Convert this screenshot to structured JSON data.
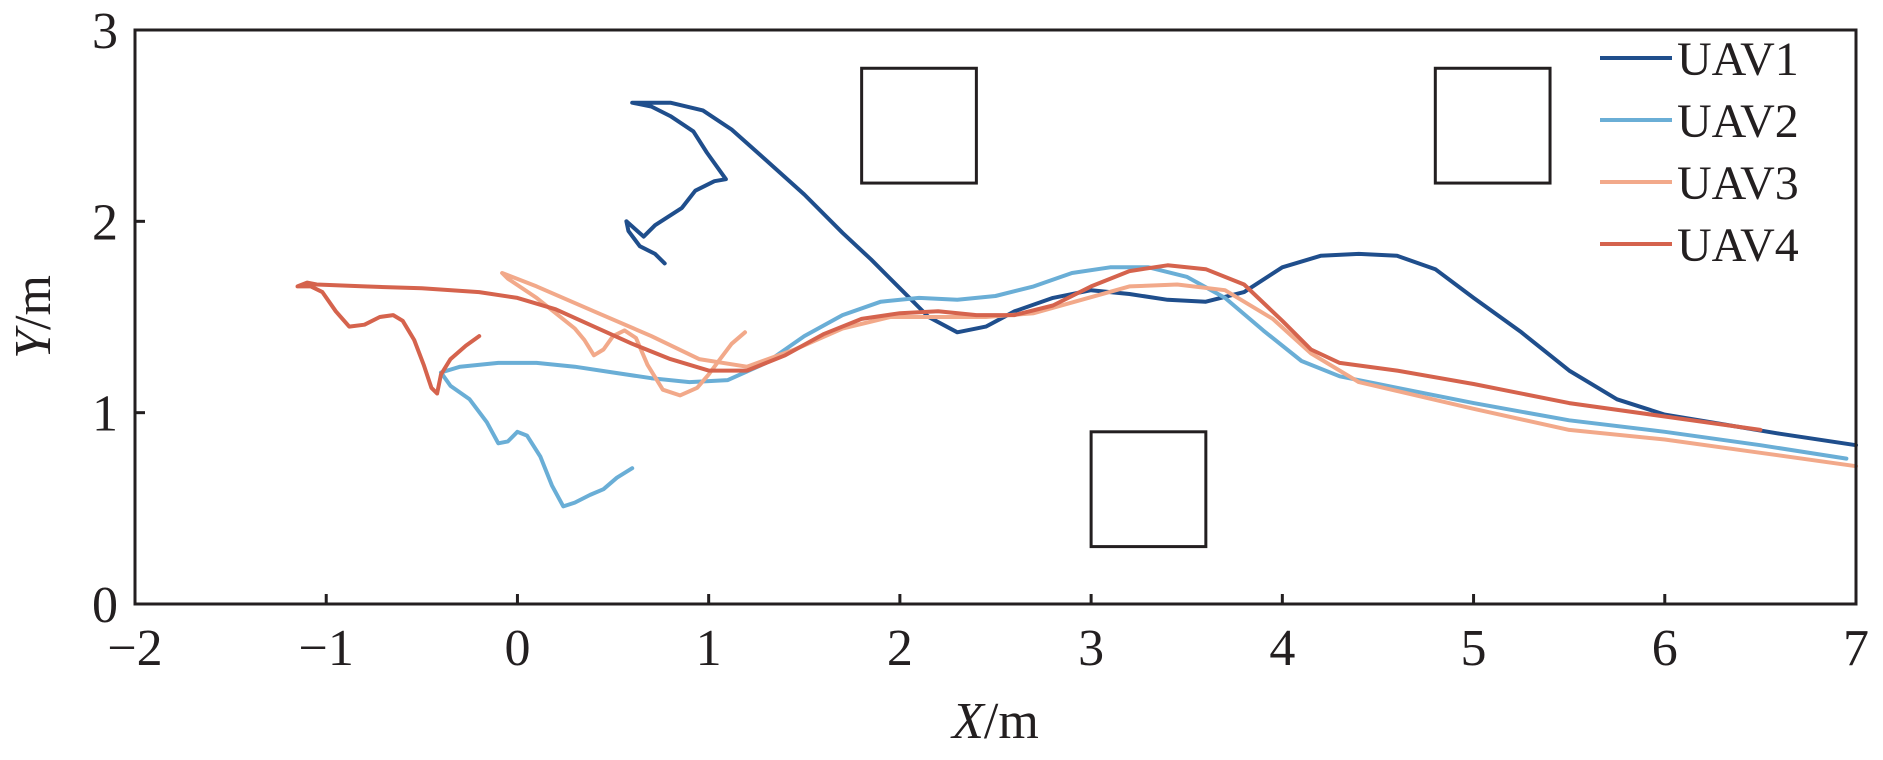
{
  "chart_data": {
    "type": "line",
    "xlabel": "X/m",
    "ylabel": "Y/m",
    "xlim": [
      -2,
      7
    ],
    "ylim": [
      0,
      3
    ],
    "xticks": [
      "−2",
      "−1",
      "0",
      "1",
      "2",
      "3",
      "4",
      "5",
      "6",
      "7"
    ],
    "yticks": [
      "0",
      "1",
      "2",
      "3"
    ],
    "grid": false,
    "legend_position": "top-right",
    "obstacles": [
      {
        "x": [
          1.8,
          2.4
        ],
        "y": [
          2.2,
          2.8
        ]
      },
      {
        "x": [
          3.0,
          3.6
        ],
        "y": [
          0.3,
          0.9
        ]
      },
      {
        "x": [
          4.8,
          5.4
        ],
        "y": [
          2.2,
          2.8
        ]
      }
    ],
    "series": [
      {
        "name": "UAV1",
        "color": "#1f4e8c",
        "points": [
          [
            0.77,
            1.78
          ],
          [
            0.72,
            1.83
          ],
          [
            0.64,
            1.87
          ],
          [
            0.58,
            1.95
          ],
          [
            0.57,
            2.0
          ],
          [
            0.66,
            1.92
          ],
          [
            0.72,
            1.98
          ],
          [
            0.86,
            2.07
          ],
          [
            0.93,
            2.16
          ],
          [
            1.03,
            2.21
          ],
          [
            1.09,
            2.22
          ],
          [
            0.99,
            2.36
          ],
          [
            0.92,
            2.47
          ],
          [
            0.8,
            2.55
          ],
          [
            0.7,
            2.6
          ],
          [
            0.6,
            2.62
          ],
          [
            0.8,
            2.62
          ],
          [
            0.97,
            2.58
          ],
          [
            1.12,
            2.48
          ],
          [
            1.3,
            2.32
          ],
          [
            1.5,
            2.14
          ],
          [
            1.7,
            1.94
          ],
          [
            1.85,
            1.8
          ],
          [
            2.0,
            1.65
          ],
          [
            2.15,
            1.5
          ],
          [
            2.3,
            1.42
          ],
          [
            2.45,
            1.45
          ],
          [
            2.6,
            1.53
          ],
          [
            2.8,
            1.6
          ],
          [
            3.0,
            1.64
          ],
          [
            3.2,
            1.62
          ],
          [
            3.4,
            1.59
          ],
          [
            3.6,
            1.58
          ],
          [
            3.8,
            1.63
          ],
          [
            4.0,
            1.76
          ],
          [
            4.2,
            1.82
          ],
          [
            4.4,
            1.83
          ],
          [
            4.6,
            1.82
          ],
          [
            4.8,
            1.75
          ],
          [
            5.0,
            1.6
          ],
          [
            5.25,
            1.42
          ],
          [
            5.5,
            1.22
          ],
          [
            5.75,
            1.07
          ],
          [
            6.0,
            0.99
          ],
          [
            6.3,
            0.94
          ],
          [
            6.6,
            0.89
          ],
          [
            7.0,
            0.83
          ]
        ]
      },
      {
        "name": "UAV2",
        "color": "#6aaed6",
        "points": [
          [
            0.6,
            0.71
          ],
          [
            0.52,
            0.66
          ],
          [
            0.45,
            0.6
          ],
          [
            0.38,
            0.57
          ],
          [
            0.3,
            0.53
          ],
          [
            0.24,
            0.51
          ],
          [
            0.18,
            0.62
          ],
          [
            0.12,
            0.77
          ],
          [
            0.05,
            0.88
          ],
          [
            0.0,
            0.9
          ],
          [
            -0.05,
            0.85
          ],
          [
            -0.1,
            0.84
          ],
          [
            -0.16,
            0.95
          ],
          [
            -0.25,
            1.07
          ],
          [
            -0.35,
            1.14
          ],
          [
            -0.4,
            1.21
          ],
          [
            -0.3,
            1.24
          ],
          [
            -0.1,
            1.26
          ],
          [
            0.1,
            1.26
          ],
          [
            0.3,
            1.24
          ],
          [
            0.5,
            1.21
          ],
          [
            0.7,
            1.18
          ],
          [
            0.9,
            1.16
          ],
          [
            1.1,
            1.17
          ],
          [
            1.3,
            1.26
          ],
          [
            1.5,
            1.4
          ],
          [
            1.7,
            1.51
          ],
          [
            1.9,
            1.58
          ],
          [
            2.1,
            1.6
          ],
          [
            2.3,
            1.59
          ],
          [
            2.5,
            1.61
          ],
          [
            2.7,
            1.66
          ],
          [
            2.9,
            1.73
          ],
          [
            3.1,
            1.76
          ],
          [
            3.3,
            1.76
          ],
          [
            3.5,
            1.71
          ],
          [
            3.7,
            1.6
          ],
          [
            3.9,
            1.43
          ],
          [
            4.1,
            1.27
          ],
          [
            4.3,
            1.19
          ],
          [
            4.6,
            1.13
          ],
          [
            5.0,
            1.05
          ],
          [
            5.5,
            0.96
          ],
          [
            6.0,
            0.9
          ],
          [
            6.5,
            0.83
          ],
          [
            6.95,
            0.76
          ]
        ]
      },
      {
        "name": "UAV3",
        "color": "#f2a98a",
        "points": [
          [
            1.19,
            1.42
          ],
          [
            1.12,
            1.36
          ],
          [
            1.06,
            1.28
          ],
          [
            1.0,
            1.2
          ],
          [
            0.94,
            1.13
          ],
          [
            0.85,
            1.09
          ],
          [
            0.76,
            1.12
          ],
          [
            0.68,
            1.25
          ],
          [
            0.62,
            1.39
          ],
          [
            0.56,
            1.43
          ],
          [
            0.5,
            1.4
          ],
          [
            0.45,
            1.33
          ],
          [
            0.4,
            1.3
          ],
          [
            0.35,
            1.38
          ],
          [
            0.3,
            1.44
          ],
          [
            0.2,
            1.52
          ],
          [
            0.1,
            1.6
          ],
          [
            -0.05,
            1.7
          ],
          [
            -0.08,
            1.73
          ],
          [
            0.1,
            1.66
          ],
          [
            0.4,
            1.53
          ],
          [
            0.7,
            1.4
          ],
          [
            0.95,
            1.28
          ],
          [
            1.2,
            1.24
          ],
          [
            1.45,
            1.33
          ],
          [
            1.7,
            1.44
          ],
          [
            1.95,
            1.5
          ],
          [
            2.2,
            1.5
          ],
          [
            2.45,
            1.5
          ],
          [
            2.7,
            1.52
          ],
          [
            2.95,
            1.59
          ],
          [
            3.2,
            1.66
          ],
          [
            3.45,
            1.67
          ],
          [
            3.7,
            1.64
          ],
          [
            3.95,
            1.49
          ],
          [
            4.15,
            1.31
          ],
          [
            4.4,
            1.16
          ],
          [
            4.7,
            1.09
          ],
          [
            5.0,
            1.02
          ],
          [
            5.5,
            0.91
          ],
          [
            6.0,
            0.86
          ],
          [
            6.5,
            0.79
          ],
          [
            7.0,
            0.72
          ]
        ]
      },
      {
        "name": "UAV4",
        "color": "#d5634d",
        "points": [
          [
            -0.2,
            1.4
          ],
          [
            -0.27,
            1.35
          ],
          [
            -0.35,
            1.28
          ],
          [
            -0.4,
            1.2
          ],
          [
            -0.42,
            1.1
          ],
          [
            -0.45,
            1.13
          ],
          [
            -0.49,
            1.25
          ],
          [
            -0.54,
            1.38
          ],
          [
            -0.6,
            1.48
          ],
          [
            -0.65,
            1.51
          ],
          [
            -0.72,
            1.5
          ],
          [
            -0.8,
            1.46
          ],
          [
            -0.88,
            1.45
          ],
          [
            -0.95,
            1.53
          ],
          [
            -1.02,
            1.63
          ],
          [
            -1.08,
            1.66
          ],
          [
            -1.15,
            1.66
          ],
          [
            -1.1,
            1.68
          ],
          [
            -1.05,
            1.67
          ],
          [
            -0.8,
            1.66
          ],
          [
            -0.5,
            1.65
          ],
          [
            -0.2,
            1.63
          ],
          [
            0.0,
            1.6
          ],
          [
            0.2,
            1.54
          ],
          [
            0.4,
            1.45
          ],
          [
            0.6,
            1.36
          ],
          [
            0.8,
            1.28
          ],
          [
            1.0,
            1.22
          ],
          [
            1.2,
            1.22
          ],
          [
            1.4,
            1.3
          ],
          [
            1.6,
            1.41
          ],
          [
            1.8,
            1.49
          ],
          [
            2.0,
            1.52
          ],
          [
            2.2,
            1.53
          ],
          [
            2.4,
            1.51
          ],
          [
            2.6,
            1.51
          ],
          [
            2.8,
            1.56
          ],
          [
            3.0,
            1.66
          ],
          [
            3.2,
            1.74
          ],
          [
            3.4,
            1.77
          ],
          [
            3.6,
            1.75
          ],
          [
            3.8,
            1.67
          ],
          [
            4.0,
            1.48
          ],
          [
            4.15,
            1.33
          ],
          [
            4.3,
            1.26
          ],
          [
            4.6,
            1.22
          ],
          [
            5.0,
            1.15
          ],
          [
            5.5,
            1.05
          ],
          [
            6.0,
            0.98
          ],
          [
            6.5,
            0.91
          ]
        ]
      }
    ]
  }
}
